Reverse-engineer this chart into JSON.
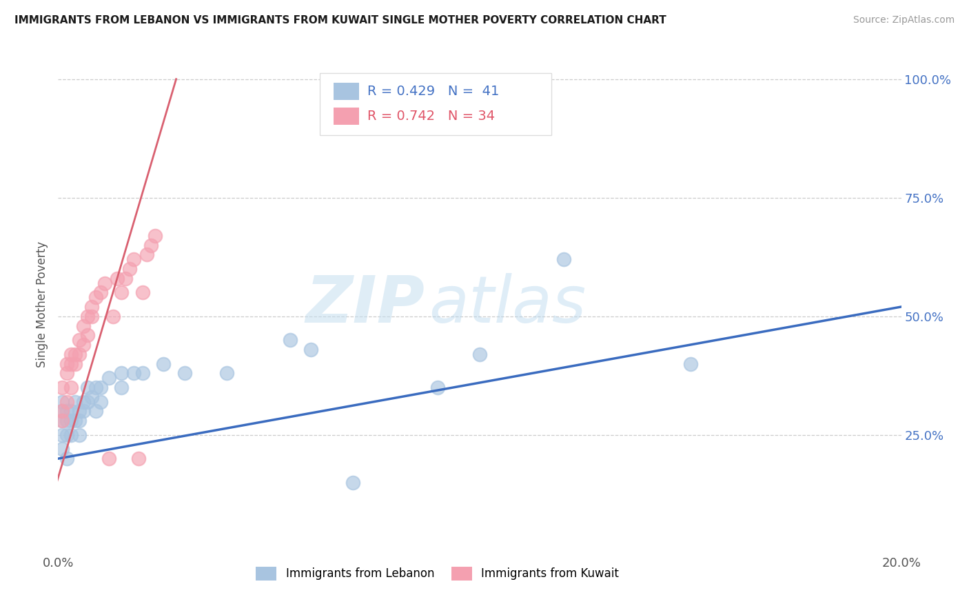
{
  "title": "IMMIGRANTS FROM LEBANON VS IMMIGRANTS FROM KUWAIT SINGLE MOTHER POVERTY CORRELATION CHART",
  "source": "Source: ZipAtlas.com",
  "ylabel": "Single Mother Poverty",
  "xlim": [
    0.0,
    0.2
  ],
  "ylim": [
    0.0,
    1.05
  ],
  "xtick_positions": [
    0.0,
    0.2
  ],
  "xtick_labels": [
    "0.0%",
    "20.0%"
  ],
  "ytick_values": [
    0.25,
    0.5,
    0.75,
    1.0
  ],
  "ytick_labels": [
    "25.0%",
    "50.0%",
    "75.0%",
    "100.0%"
  ],
  "grid_color": "#cccccc",
  "background_color": "#ffffff",
  "watermark_zip": "ZIP",
  "watermark_atlas": "atlas",
  "legend_R1": "R = 0.429",
  "legend_N1": "N =  41",
  "legend_R2": "R = 0.742",
  "legend_N2": "N = 34",
  "lebanon_color": "#a8c4e0",
  "kuwait_color": "#f4a0b0",
  "line_lebanon_color": "#3a6bbf",
  "line_kuwait_color": "#d96070",
  "lebanon_label": "Immigrants from Lebanon",
  "kuwait_label": "Immigrants from Kuwait",
  "lebanon_scatter_x": [
    0.001,
    0.001,
    0.001,
    0.001,
    0.001,
    0.002,
    0.002,
    0.002,
    0.002,
    0.003,
    0.003,
    0.003,
    0.004,
    0.004,
    0.005,
    0.005,
    0.005,
    0.006,
    0.006,
    0.007,
    0.007,
    0.008,
    0.009,
    0.009,
    0.01,
    0.01,
    0.012,
    0.015,
    0.015,
    0.018,
    0.02,
    0.025,
    0.03,
    0.04,
    0.055,
    0.06,
    0.07,
    0.09,
    0.1,
    0.12,
    0.15
  ],
  "lebanon_scatter_y": [
    0.28,
    0.3,
    0.32,
    0.25,
    0.22,
    0.28,
    0.3,
    0.25,
    0.2,
    0.3,
    0.28,
    0.25,
    0.32,
    0.28,
    0.3,
    0.28,
    0.25,
    0.3,
    0.32,
    0.32,
    0.35,
    0.33,
    0.35,
    0.3,
    0.35,
    0.32,
    0.37,
    0.38,
    0.35,
    0.38,
    0.38,
    0.4,
    0.38,
    0.38,
    0.45,
    0.43,
    0.15,
    0.35,
    0.42,
    0.62,
    0.4
  ],
  "kuwait_scatter_x": [
    0.001,
    0.001,
    0.001,
    0.002,
    0.002,
    0.002,
    0.003,
    0.003,
    0.003,
    0.004,
    0.004,
    0.005,
    0.005,
    0.006,
    0.006,
    0.007,
    0.007,
    0.008,
    0.008,
    0.009,
    0.01,
    0.011,
    0.012,
    0.013,
    0.014,
    0.015,
    0.016,
    0.017,
    0.018,
    0.019,
    0.02,
    0.021,
    0.022,
    0.023
  ],
  "kuwait_scatter_y": [
    0.3,
    0.35,
    0.28,
    0.32,
    0.38,
    0.4,
    0.35,
    0.4,
    0.42,
    0.4,
    0.42,
    0.42,
    0.45,
    0.44,
    0.48,
    0.46,
    0.5,
    0.5,
    0.52,
    0.54,
    0.55,
    0.57,
    0.2,
    0.5,
    0.58,
    0.55,
    0.58,
    0.6,
    0.62,
    0.2,
    0.55,
    0.63,
    0.65,
    0.67
  ],
  "lebanon_line_x": [
    0.0,
    0.2
  ],
  "lebanon_line_y": [
    0.2,
    0.52
  ],
  "kuwait_line_x": [
    -0.002,
    0.028
  ],
  "kuwait_line_y": [
    0.1,
    1.0
  ]
}
